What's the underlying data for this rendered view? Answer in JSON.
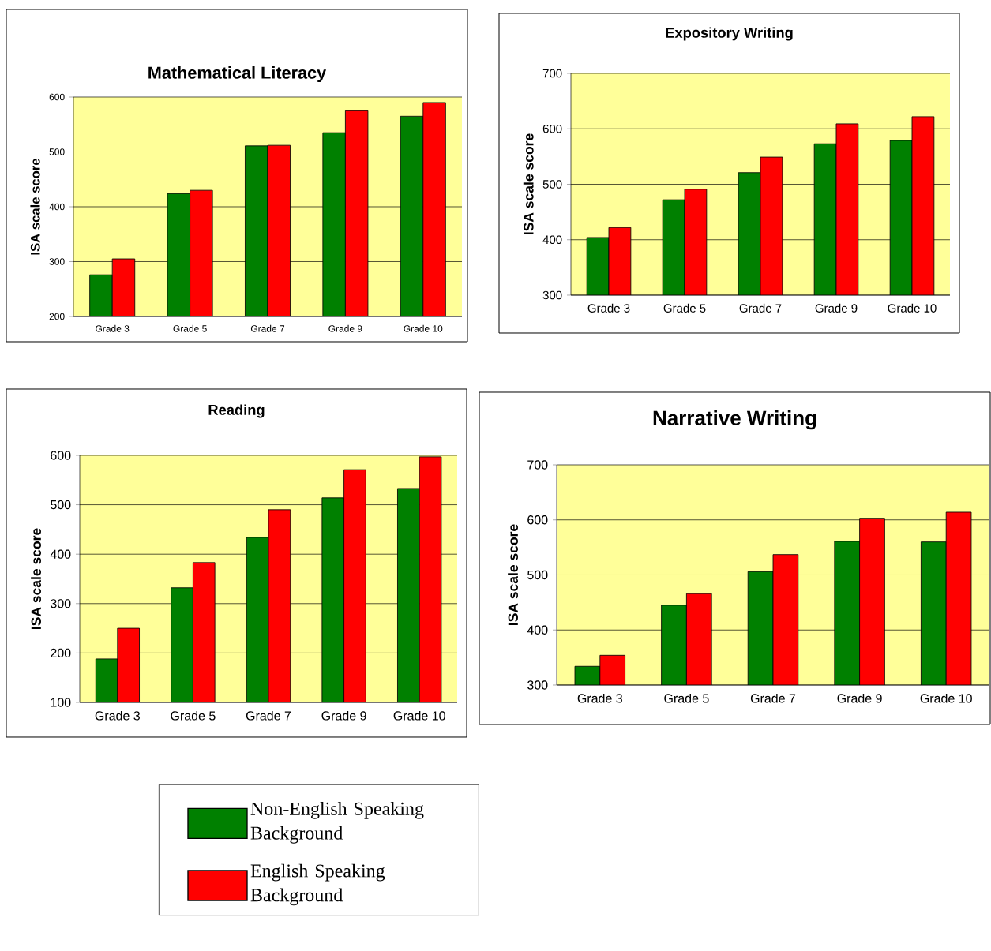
{
  "chart_data": [
    {
      "type": "bar",
      "title": "Mathematical Literacy",
      "ylabel": "ISA scale score",
      "categories": [
        "Grade 3",
        "Grade 5",
        "Grade 7",
        "Grade 9",
        "Grade 10"
      ],
      "series": [
        {
          "name": "Non-English Speaking Background",
          "color": "#008000",
          "values": [
            276,
            424,
            511,
            535,
            565
          ]
        },
        {
          "name": "English Speaking Background",
          "color": "#ff0000",
          "values": [
            305,
            430,
            512,
            575,
            590
          ]
        }
      ],
      "ylim": [
        200,
        600
      ],
      "yticks": [
        200,
        300,
        400,
        500,
        600
      ],
      "grid": "y",
      "legend": "bottom"
    },
    {
      "type": "bar",
      "title": "Expository Writing",
      "ylabel": "ISA scale score",
      "categories": [
        "Grade 3",
        "Grade 5",
        "Grade 7",
        "Grade 9",
        "Grade 10"
      ],
      "series": [
        {
          "color": "#008000",
          "values": [
            404,
            472,
            521,
            573,
            579
          ]
        },
        {
          "color": "#ff0000",
          "values": [
            422,
            491,
            549,
            609,
            622
          ]
        }
      ],
      "ylim": [
        300,
        700
      ],
      "yticks": [
        300,
        400,
        500,
        600,
        700
      ],
      "grid": "y"
    },
    {
      "type": "bar",
      "title": "Reading",
      "ylabel": "ISA scale score",
      "categories": [
        "Grade 3",
        "Grade 5",
        "Grade 7",
        "Grade 9",
        "Grade 10"
      ],
      "series": [
        {
          "color": "#008000",
          "values": [
            188,
            332,
            434,
            514,
            533
          ]
        },
        {
          "color": "#ff0000",
          "values": [
            250,
            383,
            490,
            571,
            597
          ]
        }
      ],
      "ylim": [
        100,
        600
      ],
      "yticks": [
        100,
        200,
        300,
        400,
        500,
        600
      ],
      "grid": "y"
    },
    {
      "type": "bar",
      "title": "Narrative Writing",
      "ylabel": "ISA scale score",
      "categories": [
        "Grade 3",
        "Grade 5",
        "Grade 7",
        "Grade 9",
        "Grade 10"
      ],
      "series": [
        {
          "color": "#008000",
          "values": [
            334,
            445,
            506,
            561,
            560
          ]
        },
        {
          "color": "#ff0000",
          "values": [
            354,
            466,
            537,
            603,
            614
          ]
        }
      ],
      "ylim": [
        300,
        700
      ],
      "yticks": [
        300,
        400,
        500,
        600,
        700
      ],
      "grid": "y"
    }
  ]
}
